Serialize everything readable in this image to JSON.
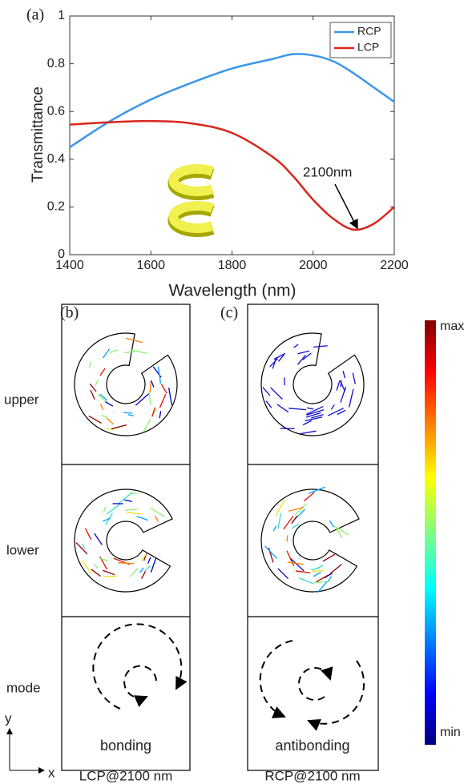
{
  "chart_data": {
    "type": "line",
    "panel_label": "(a)",
    "xlabel": "Wavelength (nm)",
    "ylabel": "Transmittance",
    "x": [
      1400,
      1500,
      1600,
      1700,
      1800,
      1900,
      1950,
      2000,
      2050,
      2100,
      2150,
      2200
    ],
    "series": [
      {
        "name": "RCP",
        "color": "#3b96ea",
        "values": [
          0.45,
          0.56,
          0.65,
          0.72,
          0.78,
          0.82,
          0.84,
          0.835,
          0.81,
          0.76,
          0.7,
          0.64
        ]
      },
      {
        "name": "LCP",
        "color": "#d8251c",
        "values": [
          0.545,
          0.555,
          0.56,
          0.55,
          0.51,
          0.41,
          0.33,
          0.23,
          0.15,
          0.105,
          0.13,
          0.2
        ]
      }
    ],
    "xlim": [
      1400,
      2200
    ],
    "xticks": [
      1400,
      1600,
      1800,
      2000,
      2200
    ],
    "ylim": [
      0,
      1
    ],
    "yticks": [
      0,
      0.2,
      0.4,
      0.6,
      0.8,
      1
    ],
    "legend": "top-right",
    "annotation": "2100nm"
  },
  "field_maps": {
    "panel_b": "(b)",
    "panel_c": "(c)",
    "rows": [
      "upper",
      "lower",
      "mode"
    ],
    "modes": [
      "bonding",
      "antibonding"
    ],
    "columns": [
      "LCP@2100 nm",
      "RCP@2100 nm"
    ],
    "colorbar": {
      "max": "max",
      "min": "min"
    },
    "axes": {
      "y": "y",
      "x": "x"
    }
  }
}
